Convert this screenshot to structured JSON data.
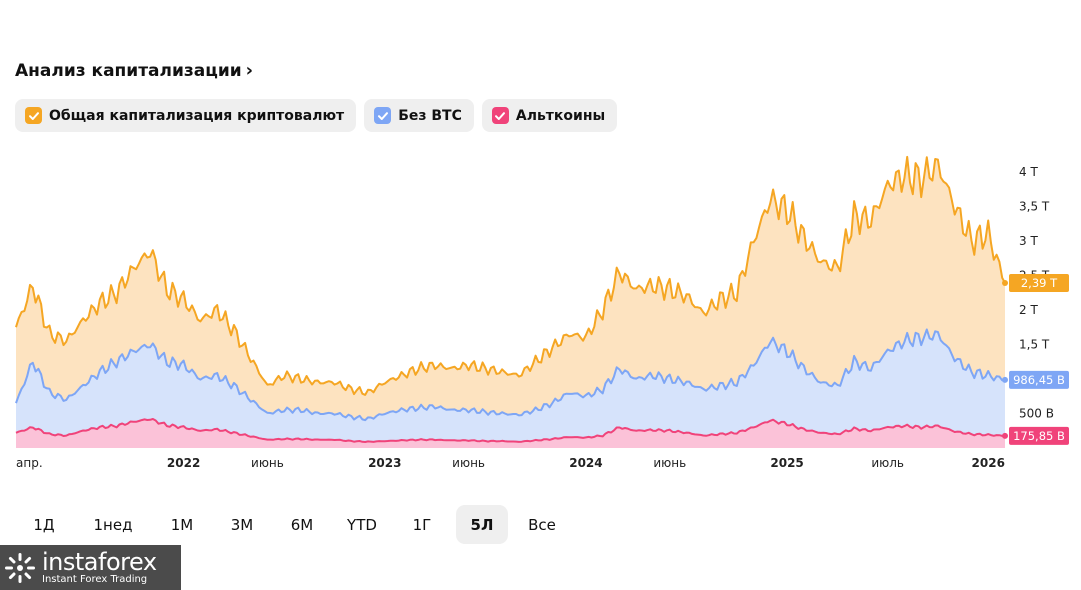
{
  "header": {
    "title": "Анализ капитализации",
    "chevron": "›"
  },
  "legend": [
    {
      "label": "Общая капитализация криптовалют",
      "color": "#f5a623",
      "checked": true
    },
    {
      "label": "Без BTC",
      "color": "#7ea6f5",
      "checked": true
    },
    {
      "label": "Альткоины",
      "color": "#f0437a",
      "checked": true
    }
  ],
  "tabs": [
    {
      "label": "1Д",
      "active": false
    },
    {
      "label": "1нед",
      "active": false
    },
    {
      "label": "1М",
      "active": false
    },
    {
      "label": "3М",
      "active": false
    },
    {
      "label": "6М",
      "active": false
    },
    {
      "label": "YTD",
      "active": false
    },
    {
      "label": "1Г",
      "active": false
    },
    {
      "label": "5Л",
      "active": true
    },
    {
      "label": "Все",
      "active": false
    }
  ],
  "logo": {
    "name": "instaforex",
    "tagline": "Instant Forex Trading"
  },
  "chart_data": {
    "type": "area",
    "y_ticks": [
      {
        "value": 500000000000.0,
        "label": "500 B"
      },
      {
        "value": 1500000000000.0,
        "label": "1,5 T"
      },
      {
        "value": 2000000000000.0,
        "label": "2 T"
      },
      {
        "value": 2500000000000.0,
        "label": "2,5 T"
      },
      {
        "value": 3000000000000.0,
        "label": "3 T"
      },
      {
        "value": 3500000000000.0,
        "label": "3,5 T"
      },
      {
        "value": 4000000000000.0,
        "label": "4 T"
      }
    ],
    "ylim": [
      0,
      4200000000000.0
    ],
    "x_ticks": [
      {
        "x": "2021-04",
        "label": "апр.",
        "bold": false
      },
      {
        "x": "2022-01",
        "label": "2022",
        "bold": true
      },
      {
        "x": "2022-06",
        "label": "июнь",
        "bold": false
      },
      {
        "x": "2023-01",
        "label": "2023",
        "bold": true
      },
      {
        "x": "2023-06",
        "label": "июнь",
        "bold": false
      },
      {
        "x": "2024-01",
        "label": "2024",
        "bold": true
      },
      {
        "x": "2024-06",
        "label": "июнь",
        "bold": false
      },
      {
        "x": "2025-01",
        "label": "2025",
        "bold": true
      },
      {
        "x": "2025-07",
        "label": "июль",
        "bold": false
      },
      {
        "x": "2026-01",
        "label": "2026",
        "bold": true
      }
    ],
    "x": [
      "2021-03",
      "2021-04",
      "2021-05",
      "2021-06",
      "2021-07",
      "2021-08",
      "2021-09",
      "2021-10",
      "2021-11",
      "2021-12",
      "2022-01",
      "2022-02",
      "2022-03",
      "2022-04",
      "2022-05",
      "2022-06",
      "2022-07",
      "2022-08",
      "2022-09",
      "2022-10",
      "2022-11",
      "2022-12",
      "2023-01",
      "2023-02",
      "2023-03",
      "2023-04",
      "2023-05",
      "2023-06",
      "2023-07",
      "2023-08",
      "2023-09",
      "2023-10",
      "2023-11",
      "2023-12",
      "2024-01",
      "2024-02",
      "2024-03",
      "2024-04",
      "2024-05",
      "2024-06",
      "2024-07",
      "2024-08",
      "2024-09",
      "2024-10",
      "2024-11",
      "2024-12",
      "2025-01",
      "2025-02",
      "2025-03",
      "2025-04",
      "2025-05",
      "2025-06",
      "2025-07",
      "2025-08",
      "2025-09",
      "2025-10",
      "2025-11",
      "2025-12",
      "2026-01",
      "2026-02"
    ],
    "series": [
      {
        "name": "Общая капитализация криптовалют",
        "color": "#f5a623",
        "fill": "#fde3c0",
        "last_label": "2,39 T",
        "values": [
          1.75,
          2.35,
          1.65,
          1.55,
          1.85,
          2.1,
          2.25,
          2.6,
          2.85,
          2.3,
          2.15,
          1.85,
          2.0,
          1.7,
          1.3,
          0.9,
          1.05,
          1.0,
          0.95,
          0.95,
          0.85,
          0.8,
          0.95,
          1.05,
          1.15,
          1.2,
          1.15,
          1.2,
          1.15,
          1.1,
          1.05,
          1.25,
          1.45,
          1.65,
          1.6,
          2.0,
          2.55,
          2.3,
          2.35,
          2.3,
          2.2,
          1.95,
          2.15,
          2.25,
          3.0,
          3.6,
          3.45,
          3.05,
          2.7,
          2.6,
          3.35,
          3.3,
          3.8,
          3.95,
          3.9,
          4.1,
          3.5,
          3.0,
          3.1,
          2.39
        ]
      },
      {
        "name": "Без BTC",
        "color": "#7ea6f5",
        "fill": "#d6e3fb",
        "last_label": "986,45 B",
        "values": [
          0.65,
          1.25,
          0.8,
          0.7,
          0.9,
          1.1,
          1.25,
          1.4,
          1.5,
          1.25,
          1.2,
          1.0,
          1.05,
          0.9,
          0.7,
          0.5,
          0.55,
          0.55,
          0.5,
          0.5,
          0.45,
          0.42,
          0.5,
          0.55,
          0.58,
          0.6,
          0.55,
          0.55,
          0.52,
          0.5,
          0.48,
          0.55,
          0.65,
          0.8,
          0.75,
          0.85,
          1.15,
          1.0,
          1.05,
          1.0,
          0.95,
          0.85,
          0.9,
          0.95,
          1.2,
          1.55,
          1.4,
          1.15,
          0.95,
          0.9,
          1.25,
          1.15,
          1.4,
          1.55,
          1.6,
          1.65,
          1.3,
          1.1,
          1.05,
          0.98645
        ]
      },
      {
        "name": "Альткоины",
        "color": "#f0437a",
        "fill": "#fbc2d8",
        "last_label": "175,85 B",
        "values": [
          0.22,
          0.3,
          0.2,
          0.18,
          0.25,
          0.3,
          0.32,
          0.38,
          0.42,
          0.33,
          0.3,
          0.25,
          0.27,
          0.22,
          0.17,
          0.12,
          0.13,
          0.13,
          0.12,
          0.12,
          0.1,
          0.09,
          0.1,
          0.11,
          0.12,
          0.12,
          0.11,
          0.11,
          0.1,
          0.1,
          0.09,
          0.11,
          0.13,
          0.16,
          0.15,
          0.18,
          0.3,
          0.25,
          0.26,
          0.25,
          0.22,
          0.18,
          0.2,
          0.22,
          0.3,
          0.4,
          0.35,
          0.27,
          0.22,
          0.2,
          0.28,
          0.25,
          0.3,
          0.32,
          0.3,
          0.32,
          0.24,
          0.2,
          0.19,
          0.17585
        ]
      }
    ]
  }
}
